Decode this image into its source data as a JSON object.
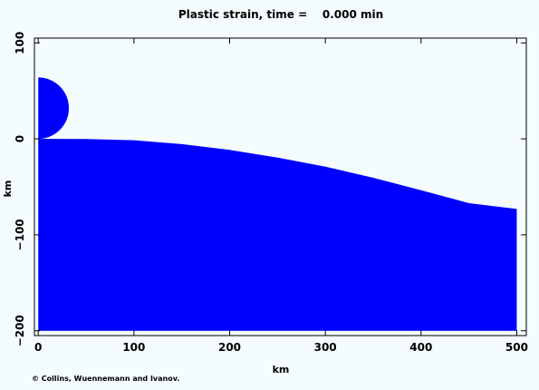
{
  "chart_data": {
    "type": "area",
    "title": "Plastic strain, time =    0.000 min",
    "xlabel": "km",
    "ylabel": "km",
    "xlim": [
      -4,
      510
    ],
    "ylim": [
      -205,
      105
    ],
    "x_ticks": [
      0,
      100,
      200,
      300,
      400,
      500
    ],
    "x_tick_labels": [
      "0",
      "100",
      "200",
      "300",
      "400",
      "500"
    ],
    "y_ticks": [
      100,
      0,
      -100,
      -200
    ],
    "y_tick_labels": [
      "100",
      "0",
      "−100",
      "−200"
    ],
    "target": {
      "name": "target",
      "color": "#0000ff",
      "top_surface": {
        "x": [
          8,
          50,
          100,
          150,
          200,
          250,
          300,
          350,
          400,
          450,
          500
        ],
        "y": [
          0,
          -0.2,
          -1.5,
          -5.5,
          -11.5,
          -19.5,
          -29,
          -40.5,
          -53.5,
          -67,
          -73
        ]
      },
      "bottom": -200
    },
    "projectile": {
      "name": "projectile",
      "color": "#0000ff",
      "center": [
        0,
        32
      ],
      "radius": 32
    },
    "plastic_strain_value": 0,
    "grid": false
  },
  "footer": {
    "credit": "© Collins, Wuennemann and Ivanov."
  }
}
